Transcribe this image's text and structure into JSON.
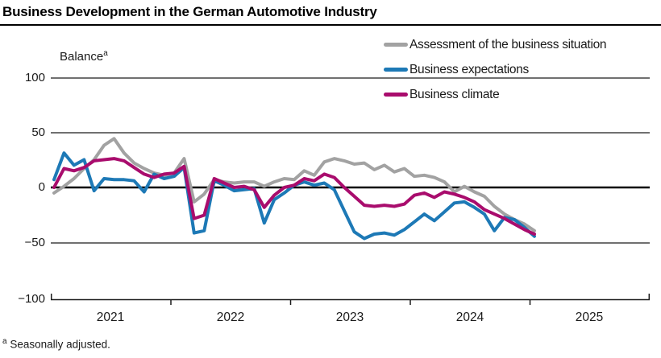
{
  "title": "Business Development in the German Automotive Industry",
  "unit": {
    "label": "Balance",
    "marker": "a"
  },
  "footnote": {
    "marker": "a",
    "text": " Seasonally adjusted."
  },
  "chart_data": {
    "type": "line",
    "title": "Business Development in the German Automotive Industry",
    "ylabel": "Balance (seasonally adjusted)",
    "x_unit": "month",
    "x_start": "2021-01",
    "x_end": "2025-01",
    "n_points": 49,
    "year_ticks": [
      "2021",
      "2022",
      "2023",
      "2024",
      "2025"
    ],
    "y_tick_labels": [
      "100",
      "50",
      "0",
      "−50",
      "−100"
    ],
    "y_ticks": [
      100,
      50,
      0,
      -50,
      -100
    ],
    "ylim": [
      -100,
      100
    ],
    "grid": "horizontal gridlines, emphasized zero line",
    "legend_position": "top-right",
    "series": [
      {
        "name": "Assessment of the business situation",
        "key": "situation",
        "color": "#a2a2a2",
        "values": [
          -5,
          1,
          8,
          17,
          25,
          38,
          44,
          31,
          22,
          17,
          13,
          11,
          13,
          26,
          -13,
          -6,
          7,
          5,
          4,
          5,
          5,
          1,
          5,
          8,
          7,
          15,
          11,
          23,
          26,
          24,
          21,
          22,
          16,
          20,
          14,
          17,
          10,
          11,
          9,
          5,
          -4,
          1,
          -4,
          -8,
          -17,
          -24,
          -29,
          -33,
          -39
        ]
      },
      {
        "name": "Business expectations",
        "key": "expectations",
        "color": "#1d79b6",
        "values": [
          7,
          31,
          20,
          25,
          -3,
          8,
          7,
          7,
          6,
          -4,
          12,
          8,
          10,
          18,
          -41,
          -39,
          6,
          2,
          -3,
          -2,
          -1,
          -32,
          -11,
          -5,
          2,
          5,
          2,
          4,
          -2,
          -21,
          -40,
          -46,
          -42,
          -41,
          -43,
          -38,
          -31,
          -24,
          -30,
          -22,
          -14,
          -13,
          -18,
          -24,
          -39,
          -27,
          -29,
          -36,
          -44
        ]
      },
      {
        "name": "Business climate",
        "key": "climate",
        "color": "#a90c6d",
        "values": [
          0,
          17,
          15,
          18,
          24,
          25,
          26,
          24,
          18,
          12,
          9,
          12,
          13,
          19,
          -28,
          -25,
          8,
          4,
          0,
          1,
          -2,
          -18,
          -7,
          0,
          2,
          8,
          6,
          12,
          9,
          0,
          -8,
          -16,
          -17,
          -16,
          -17,
          -15,
          -7,
          -5,
          -9,
          -4,
          -6,
          -9,
          -13,
          -20,
          -24,
          -28,
          -33,
          -38,
          -42
        ]
      }
    ]
  }
}
